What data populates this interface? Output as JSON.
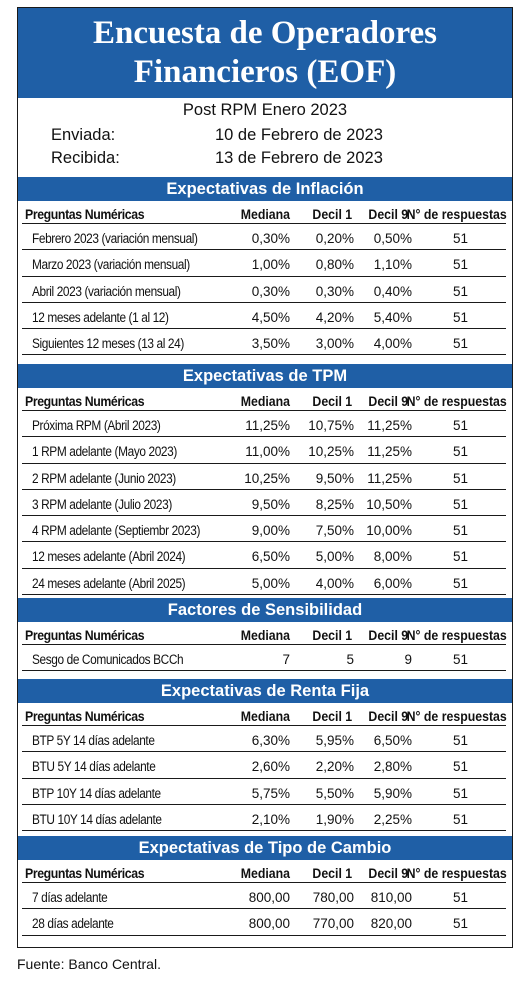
{
  "title": {
    "line1": "Encuesta de Operadores",
    "line2": "Financieros (EOF)"
  },
  "subtitle": "Post RPM Enero 2023",
  "sent": {
    "label": "Enviada:",
    "value": "10 de Febrero de 2023"
  },
  "received": {
    "label": "Recibida:",
    "value": "13 de Febrero de 2023"
  },
  "columns": {
    "question": "Preguntas Numéricas",
    "median": "Mediana",
    "d1": "Decil 1",
    "d9": "Decil 9",
    "n": "N° de respuestas"
  },
  "sections": [
    {
      "title": "Expectativas de Inflación",
      "rows": [
        {
          "label": "Febrero 2023 (variación mensual)",
          "median": "0,30%",
          "d1": "0,20%",
          "d9": "0,50%",
          "n": "51"
        },
        {
          "label": "Marzo 2023 (variación mensual)",
          "median": "1,00%",
          "d1": "0,80%",
          "d9": "1,10%",
          "n": "51"
        },
        {
          "label": "Abril 2023 (variación mensual)",
          "median": "0,30%",
          "d1": "0,30%",
          "d9": "0,40%",
          "n": "51"
        },
        {
          "label": "12 meses adelante (1 al 12)",
          "median": "4,50%",
          "d1": "4,20%",
          "d9": "5,40%",
          "n": "51"
        },
        {
          "label": "Siguientes 12 meses (13 al 24)",
          "median": "3,50%",
          "d1": "3,00%",
          "d9": "4,00%",
          "n": "51"
        }
      ]
    },
    {
      "title": "Expectativas de TPM",
      "rows": [
        {
          "label": "Próxima  RPM  (Abril 2023)",
          "median": "11,25%",
          "d1": "10,75%",
          "d9": "11,25%",
          "n": "51"
        },
        {
          "label": "1 RPM adelante  (Mayo 2023)",
          "median": "11,00%",
          "d1": "10,25%",
          "d9": "11,25%",
          "n": "51"
        },
        {
          "label": "2 RPM adelante  (Junio 2023)",
          "median": "10,25%",
          "d1": "9,50%",
          "d9": "11,25%",
          "n": "51"
        },
        {
          "label": "3 RPM adelante  (Julio 2023)",
          "median": "9,50%",
          "d1": "8,25%",
          "d9": "10,50%",
          "n": "51"
        },
        {
          "label": "4 RPM adelante  (Septiembr 2023)",
          "median": "9,00%",
          "d1": "7,50%",
          "d9": "10,00%",
          "n": "51"
        },
        {
          "label": "12 meses adelante  (Abril 2024)",
          "median": "6,50%",
          "d1": "5,00%",
          "d9": "8,00%",
          "n": "51"
        },
        {
          "label": "24 meses adelante  (Abril 2025)",
          "median": "5,00%",
          "d1": "4,00%",
          "d9": "6,00%",
          "n": "51"
        }
      ]
    },
    {
      "title": "Factores de Sensibilidad",
      "rows": [
        {
          "label": "Sesgo de Comunicados BCCh",
          "median": "7",
          "d1": "5",
          "d9": "9",
          "n": "51"
        }
      ]
    },
    {
      "title": "Expectativas  de Renta Fija",
      "rows": [
        {
          "label": "BTP 5Y 14 días adelante",
          "median": "6,30%",
          "d1": "5,95%",
          "d9": "6,50%",
          "n": "51"
        },
        {
          "label": "BTU 5Y 14 días adelante",
          "median": "2,60%",
          "d1": "2,20%",
          "d9": "2,80%",
          "n": "51"
        },
        {
          "label": "BTP 10Y 14 días adelante",
          "median": "5,75%",
          "d1": "5,50%",
          "d9": "5,90%",
          "n": "51"
        },
        {
          "label": "BTU 10Y 14 días adelante",
          "median": "2,10%",
          "d1": "1,90%",
          "d9": "2,25%",
          "n": "51"
        }
      ]
    },
    {
      "title": "Expectativas  de Tipo de Cambio",
      "rows": [
        {
          "label": "7 días adelante",
          "median": "800,00",
          "d1": "780,00",
          "d9": "810,00",
          "n": "51"
        },
        {
          "label": "28 días adelante",
          "median": "800,00",
          "d1": "770,00",
          "d9": "820,00",
          "n": "51"
        }
      ]
    }
  ],
  "footer": "Fuente: Banco Central."
}
